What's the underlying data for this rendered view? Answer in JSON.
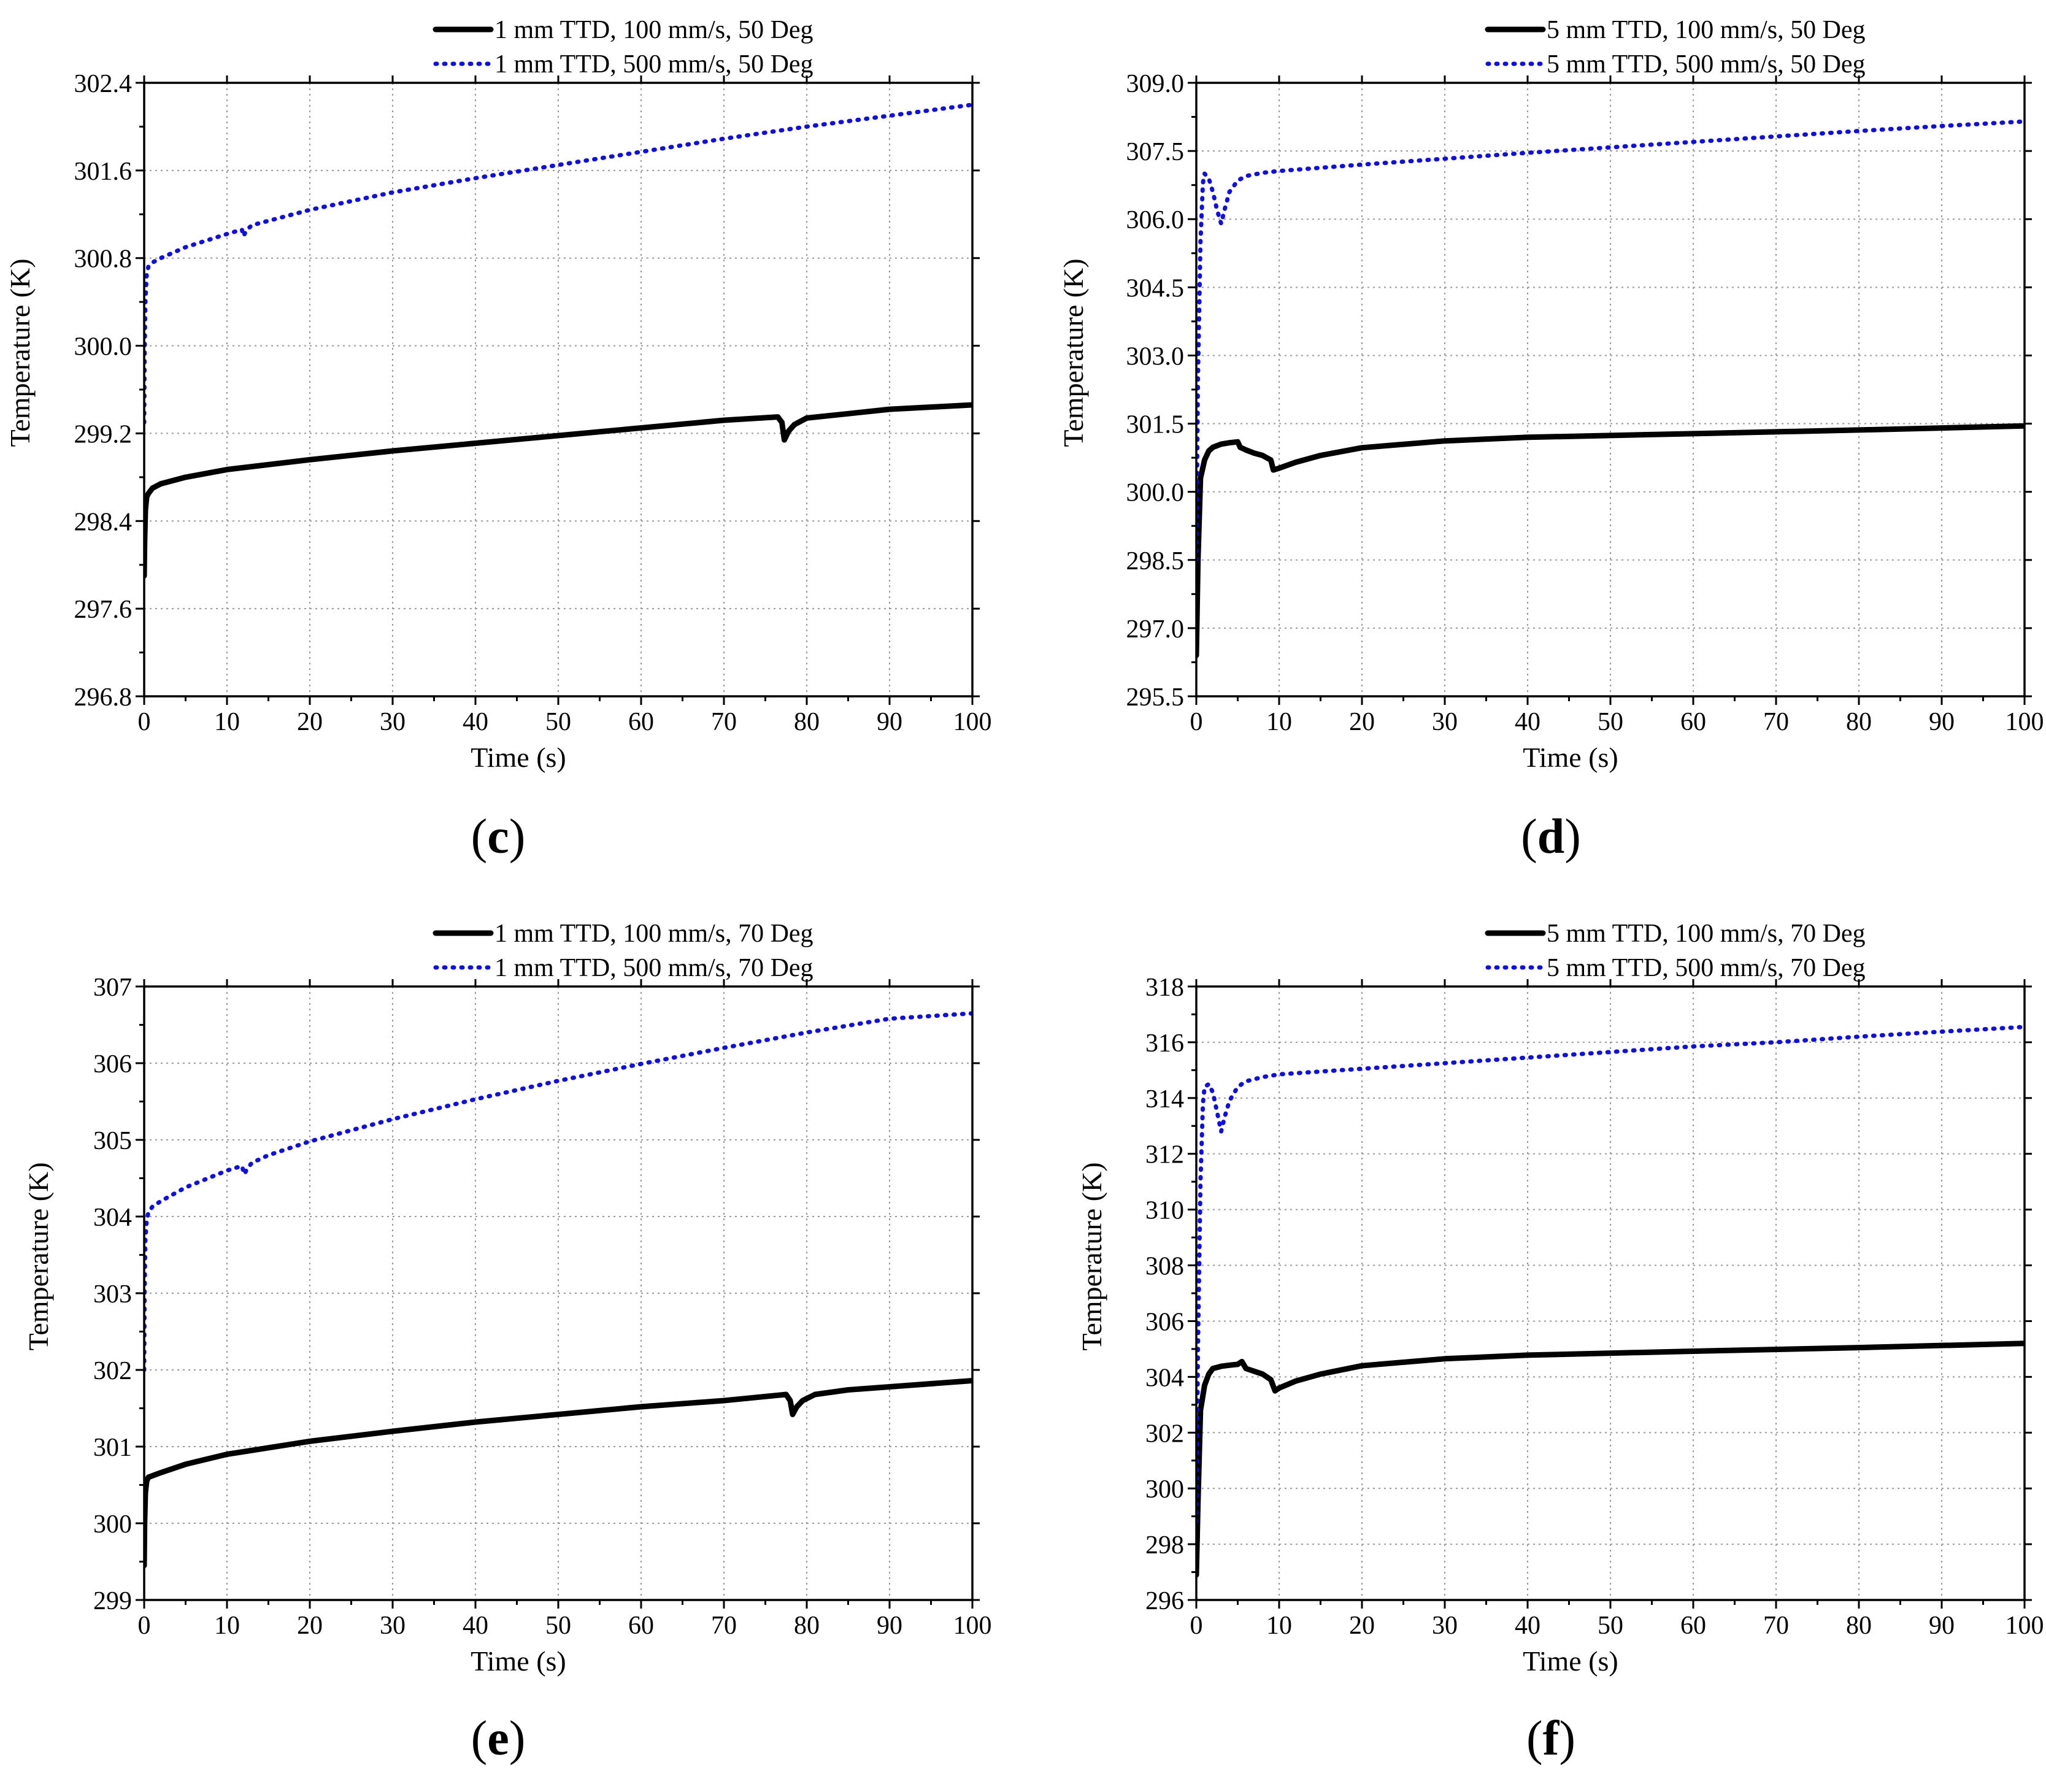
{
  "figure": {
    "panels": [
      "c",
      "d",
      "e",
      "f"
    ]
  },
  "chart_data": [
    {
      "id": "c",
      "type": "line",
      "panel_label": "c",
      "xlabel": "Time (s)",
      "ylabel": "Temperature (K)",
      "xlim": [
        0,
        100
      ],
      "ylim": [
        296.8,
        302.4
      ],
      "xticks": [
        0,
        10,
        20,
        30,
        40,
        50,
        60,
        70,
        80,
        90,
        100
      ],
      "yticks": [
        296.8,
        297.6,
        298.4,
        299.2,
        300.0,
        300.8,
        301.6,
        302.4
      ],
      "ytick_labels": [
        "296.8",
        "297.6",
        "298.4",
        "299.2",
        "300.0",
        "300.8",
        "301.6",
        "302.4"
      ],
      "grid": true,
      "legend_position": "top-center, above plot",
      "series": [
        {
          "name": "1 mm TTD, 100 mm/s, 50 Deg",
          "style": "solid",
          "color": "#000000",
          "x": [
            0,
            0.05,
            0.15,
            0.3,
            0.5,
            1,
            2,
            5,
            10,
            20,
            30,
            40,
            50,
            60,
            70,
            76.5,
            77,
            77.3,
            77.8,
            78.5,
            80,
            85,
            90,
            100
          ],
          "y": [
            297.9,
            298.2,
            298.5,
            298.62,
            298.65,
            298.7,
            298.74,
            298.8,
            298.87,
            298.96,
            299.04,
            299.11,
            299.18,
            299.25,
            299.32,
            299.35,
            299.3,
            299.14,
            299.22,
            299.28,
            299.34,
            299.38,
            299.42,
            299.46
          ]
        },
        {
          "name": "1 mm TTD, 500 mm/s, 50 Deg",
          "style": "dotted",
          "color": "#1010d8",
          "x": [
            0,
            0.05,
            0.15,
            0.3,
            0.5,
            1,
            2,
            5,
            10,
            11.8,
            12,
            12.3,
            13,
            15,
            20,
            30,
            40,
            50,
            60,
            70,
            80,
            90,
            100
          ],
          "y": [
            299.3,
            299.9,
            300.4,
            300.65,
            300.72,
            300.76,
            300.8,
            300.9,
            301.02,
            301.06,
            301.0,
            301.05,
            301.1,
            301.14,
            301.24,
            301.4,
            301.53,
            301.65,
            301.77,
            301.89,
            302.0,
            302.1,
            302.2
          ]
        }
      ]
    },
    {
      "id": "d",
      "type": "line",
      "panel_label": "d",
      "xlabel": "Time (s)",
      "ylabel": "Temperature (K)",
      "xlim": [
        0,
        100
      ],
      "ylim": [
        295.5,
        309.0
      ],
      "xticks": [
        0,
        10,
        20,
        30,
        40,
        50,
        60,
        70,
        80,
        90,
        100
      ],
      "yticks": [
        295.5,
        297.0,
        298.5,
        300.0,
        301.5,
        303.0,
        304.5,
        306.0,
        307.5,
        309.0
      ],
      "ytick_labels": [
        "295.5",
        "297.0",
        "298.5",
        "300.0",
        "301.5",
        "303.0",
        "304.5",
        "306.0",
        "307.5",
        "309.0"
      ],
      "grid": true,
      "legend_position": "top-center, above plot",
      "series": [
        {
          "name": "5 mm TTD, 100 mm/s, 50 Deg",
          "style": "solid",
          "color": "#000000",
          "x": [
            0,
            0.2,
            0.5,
            1,
            1.5,
            2,
            3,
            4,
            5,
            5.3,
            6,
            7,
            8,
            9,
            9.3,
            10,
            12,
            15,
            20,
            30,
            40,
            60,
            80,
            100
          ],
          "y": [
            296.4,
            298.5,
            300.3,
            300.7,
            300.9,
            300.98,
            301.05,
            301.08,
            301.1,
            300.98,
            300.92,
            300.85,
            300.8,
            300.7,
            300.48,
            300.52,
            300.65,
            300.8,
            300.97,
            301.12,
            301.2,
            301.28,
            301.36,
            301.45
          ]
        },
        {
          "name": "5 mm TTD, 500 mm/s, 50 Deg",
          "style": "dotted",
          "color": "#1010d8",
          "x": [
            0,
            0.2,
            0.5,
            0.8,
            1,
            1.5,
            2,
            2.5,
            3,
            3.4,
            4,
            5,
            6,
            8,
            10,
            15,
            20,
            30,
            40,
            50,
            60,
            70,
            80,
            90,
            100
          ],
          "y": [
            298.5,
            302.5,
            305.5,
            306.8,
            307.0,
            306.9,
            306.6,
            306.2,
            305.9,
            306.2,
            306.6,
            306.85,
            306.95,
            307.02,
            307.06,
            307.13,
            307.2,
            307.33,
            307.46,
            307.58,
            307.7,
            307.82,
            307.94,
            308.05,
            308.15
          ]
        }
      ]
    },
    {
      "id": "e",
      "type": "line",
      "panel_label": "e",
      "xlabel": "Time (s)",
      "ylabel": "Temperature (K)",
      "xlim": [
        0,
        100
      ],
      "ylim": [
        299,
        307
      ],
      "xticks": [
        0,
        10,
        20,
        30,
        40,
        50,
        60,
        70,
        80,
        90,
        100
      ],
      "yticks": [
        299,
        300,
        301,
        302,
        303,
        304,
        305,
        306,
        307
      ],
      "ytick_labels": [
        "299",
        "300",
        "301",
        "302",
        "303",
        "304",
        "305",
        "306",
        "307"
      ],
      "grid": true,
      "legend_position": "top-center, above plot",
      "series": [
        {
          "name": "1 mm TTD, 100 mm/s, 70 Deg",
          "style": "solid",
          "color": "#000000",
          "x": [
            0,
            0.05,
            0.15,
            0.3,
            0.5,
            1,
            2,
            5,
            10,
            20,
            30,
            40,
            50,
            60,
            70,
            77.5,
            78,
            78.3,
            78.8,
            79.5,
            81,
            85,
            90,
            100
          ],
          "y": [
            299.45,
            300.0,
            300.4,
            300.55,
            300.6,
            300.62,
            300.66,
            300.77,
            300.9,
            301.07,
            301.2,
            301.32,
            301.42,
            301.52,
            301.6,
            301.68,
            301.6,
            301.42,
            301.52,
            301.6,
            301.68,
            301.74,
            301.78,
            301.86
          ]
        },
        {
          "name": "1 mm TTD, 500 mm/s, 70 Deg",
          "style": "dotted",
          "color": "#1010d8",
          "x": [
            0,
            0.05,
            0.15,
            0.3,
            0.5,
            1,
            2,
            5,
            10,
            11.8,
            12.1,
            12.4,
            13,
            15,
            20,
            30,
            40,
            50,
            60,
            70,
            80,
            90,
            100
          ],
          "y": [
            302.0,
            303.0,
            303.7,
            303.95,
            304.05,
            304.13,
            304.2,
            304.38,
            304.6,
            304.66,
            304.55,
            304.62,
            304.7,
            304.8,
            304.98,
            305.27,
            305.53,
            305.77,
            305.99,
            306.2,
            306.4,
            306.58,
            306.65
          ]
        }
      ]
    },
    {
      "id": "f",
      "type": "line",
      "panel_label": "f",
      "xlabel": "Time (s)",
      "ylabel": "Temperature (K)",
      "xlim": [
        0,
        100
      ],
      "ylim": [
        296,
        318
      ],
      "xticks": [
        0,
        10,
        20,
        30,
        40,
        50,
        60,
        70,
        80,
        90,
        100
      ],
      "yticks": [
        296,
        298,
        300,
        302,
        304,
        306,
        308,
        310,
        312,
        314,
        316,
        318
      ],
      "ytick_labels": [
        "296",
        "298",
        "300",
        "302",
        "304",
        "306",
        "308",
        "310",
        "312",
        "314",
        "316",
        "318"
      ],
      "grid": true,
      "legend_position": "top-center, above plot",
      "series": [
        {
          "name": "5 mm TTD, 100 mm/s, 70 Deg",
          "style": "solid",
          "color": "#000000",
          "x": [
            0,
            0.2,
            0.5,
            1,
            1.5,
            2,
            3,
            4,
            5,
            5.5,
            6,
            7,
            8,
            9,
            9.5,
            10,
            12,
            15,
            20,
            30,
            40,
            60,
            80,
            100
          ],
          "y": [
            296.9,
            299.5,
            302.8,
            303.7,
            304.1,
            304.3,
            304.38,
            304.42,
            304.45,
            304.55,
            304.3,
            304.2,
            304.1,
            303.9,
            303.5,
            303.6,
            303.85,
            304.1,
            304.4,
            304.65,
            304.78,
            304.92,
            305.05,
            305.2
          ]
        },
        {
          "name": "5 mm TTD, 500 mm/s, 70 Deg",
          "style": "dotted",
          "color": "#1010d8",
          "x": [
            0,
            0.2,
            0.5,
            0.8,
            1,
            1.5,
            2,
            2.5,
            3,
            3.4,
            4,
            5,
            6,
            8,
            10,
            15,
            20,
            30,
            40,
            50,
            60,
            70,
            80,
            90,
            100
          ],
          "y": [
            298.8,
            305.0,
            311.0,
            313.8,
            314.4,
            314.5,
            314.2,
            313.5,
            312.8,
            313.3,
            313.9,
            314.4,
            314.6,
            314.75,
            314.85,
            314.95,
            315.05,
            315.25,
            315.45,
            315.65,
            315.85,
            316.0,
            316.2,
            316.38,
            316.55
          ]
        }
      ]
    }
  ]
}
